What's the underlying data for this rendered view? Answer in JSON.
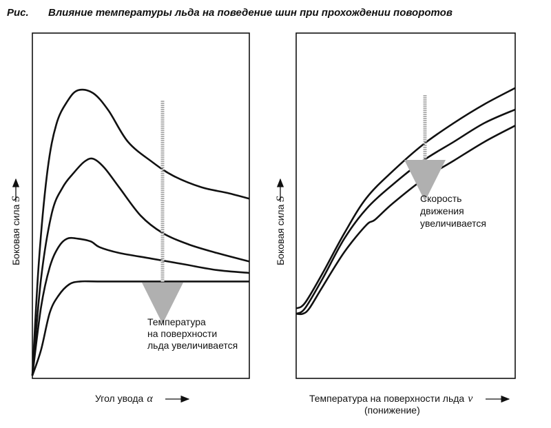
{
  "header": {
    "prefix": "Рис.",
    "title": "Влияние температуры льда на поведение шин при прохождении поворотов"
  },
  "chart_data": [
    {
      "type": "line",
      "xlabel": "Угол увода",
      "xlabel_symbol": "α",
      "ylabel": "Боковая сила",
      "ylabel_symbol": "S",
      "annotation": [
        "Температура",
        "на поверхности",
        "льда увеличивается"
      ],
      "arrow_color": "#b0b0b0",
      "line_color": "#111111",
      "grid": false,
      "xlim": [
        0,
        100
      ],
      "ylim": [
        0,
        100
      ],
      "series": [
        {
          "values": [
            [
              0,
              0
            ],
            [
              3,
              40
            ],
            [
              7,
              72
            ],
            [
              11,
              88
            ],
            [
              16,
              96
            ],
            [
              21,
              100
            ],
            [
              28,
              99
            ],
            [
              35,
              93
            ],
            [
              44,
              82
            ],
            [
              55,
              75
            ],
            [
              65,
              70
            ],
            [
              78,
              66
            ],
            [
              90,
              64
            ],
            [
              100,
              62
            ]
          ]
        },
        {
          "values": [
            [
              0,
              0
            ],
            [
              4,
              34
            ],
            [
              9,
              57
            ],
            [
              14,
              66
            ],
            [
              19,
              71
            ],
            [
              24,
              75
            ],
            [
              28,
              76
            ],
            [
              33,
              73
            ],
            [
              40,
              66
            ],
            [
              50,
              56
            ],
            [
              60,
              50
            ],
            [
              72,
              46
            ],
            [
              85,
              43
            ],
            [
              100,
              40
            ]
          ]
        },
        {
          "values": [
            [
              0,
              0
            ],
            [
              4,
              24
            ],
            [
              8,
              38
            ],
            [
              12,
              45
            ],
            [
              16,
              48
            ],
            [
              21,
              48
            ],
            [
              27,
              47
            ],
            [
              31,
              45
            ],
            [
              40,
              43
            ],
            [
              55,
              41
            ],
            [
              70,
              39
            ],
            [
              85,
              37
            ],
            [
              100,
              36
            ]
          ]
        },
        {
          "values": [
            [
              0,
              0
            ],
            [
              4,
              9
            ],
            [
              8,
              22
            ],
            [
              12,
              28
            ],
            [
              17,
              32
            ],
            [
              22,
              33
            ],
            [
              30,
              33
            ],
            [
              50,
              33
            ],
            [
              75,
              33
            ],
            [
              100,
              33
            ]
          ]
        }
      ]
    },
    {
      "type": "line",
      "xlabel": "Температура на поверхности льда",
      "xlabel_symbol": "ν",
      "xlabel_note": "(понижение)",
      "ylabel": "Боковая сила",
      "ylabel_symbol": "S",
      "annotation": [
        "Скорость",
        "движения",
        "увеличивается"
      ],
      "arrow_color": "#b0b0b0",
      "line_color": "#111111",
      "grid": false,
      "xlim": [
        0,
        100
      ],
      "ylim": [
        0,
        100
      ],
      "series": [
        {
          "values": [
            [
              0,
              25
            ],
            [
              4,
              27
            ],
            [
              12,
              38
            ],
            [
              22,
              53
            ],
            [
              32,
              66
            ],
            [
              44,
              76
            ],
            [
              58,
              86
            ],
            [
              72,
              94
            ],
            [
              86,
              101
            ],
            [
              100,
              107
            ]
          ]
        },
        {
          "values": [
            [
              0,
              23
            ],
            [
              4,
              25
            ],
            [
              12,
              36
            ],
            [
              22,
              51
            ],
            [
              32,
              62
            ],
            [
              44,
              71
            ],
            [
              58,
              80
            ],
            [
              72,
              87
            ],
            [
              86,
              94
            ],
            [
              100,
              99
            ]
          ]
        },
        {
          "values": [
            [
              0,
              23
            ],
            [
              3,
              23
            ],
            [
              6,
              25
            ],
            [
              12,
              33
            ],
            [
              22,
              46
            ],
            [
              32,
              56
            ],
            [
              36,
              58
            ],
            [
              44,
              64
            ],
            [
              58,
              73
            ],
            [
              72,
              80
            ],
            [
              86,
              87
            ],
            [
              100,
              93
            ]
          ]
        }
      ]
    }
  ]
}
